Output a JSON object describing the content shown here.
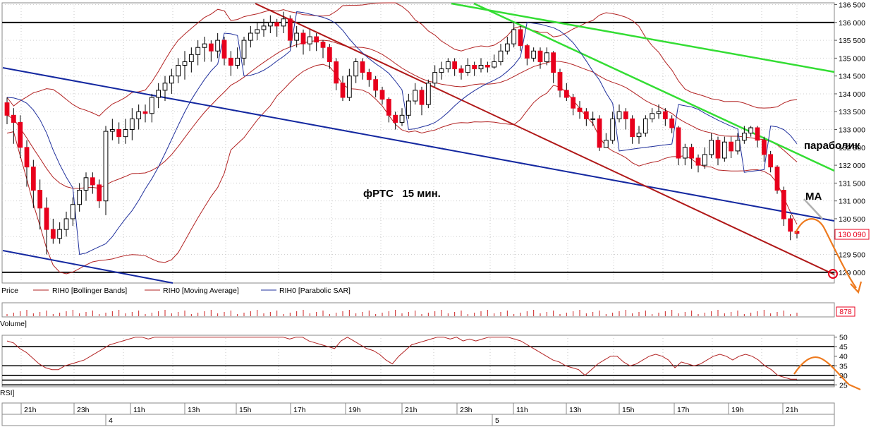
{
  "chart_data": [
    {
      "type": "candlestick",
      "title": "фРТС   15 мин.",
      "y_ticks": [
        "136 500",
        "136 000",
        "135 500",
        "135 000",
        "134 500",
        "134 000",
        "133 500",
        "133 000",
        "132 500",
        "132 000",
        "131 500",
        "131 000",
        "130 500",
        "130 000",
        "129 500",
        "129 000"
      ],
      "ylim": [
        128700,
        136550
      ],
      "last_price": 130090,
      "last_price_label": "130 090",
      "candles": [
        [
          133750,
          133400,
          133900,
          133150
        ],
        [
          133400,
          133200,
          133600,
          132600
        ],
        [
          133200,
          132500,
          133400,
          132200
        ],
        [
          132500,
          131950,
          132700,
          131400
        ],
        [
          131950,
          131300,
          132150,
          130800
        ],
        [
          131300,
          130800,
          131600,
          130200
        ],
        [
          130800,
          130200,
          131100,
          129500
        ],
        [
          130200,
          129950,
          130500,
          129800
        ],
        [
          129950,
          130200,
          130400,
          129800
        ],
        [
          130200,
          130500,
          130700,
          130000
        ],
        [
          130500,
          130900,
          131100,
          130300
        ],
        [
          130900,
          131300,
          131500,
          130700
        ],
        [
          131300,
          131650,
          131800,
          131000
        ],
        [
          131650,
          131450,
          131800,
          131200
        ],
        [
          131450,
          131000,
          131600,
          130800
        ],
        [
          131000,
          132950,
          133100,
          130600
        ],
        [
          132950,
          133000,
          133300,
          132700
        ],
        [
          133000,
          132800,
          133200,
          132600
        ],
        [
          132800,
          133000,
          133300,
          132600
        ],
        [
          133000,
          133300,
          133600,
          132700
        ],
        [
          133300,
          133500,
          133700,
          133000
        ],
        [
          133500,
          133450,
          133700,
          133200
        ],
        [
          133450,
          133900,
          134000,
          133200
        ],
        [
          133900,
          134100,
          134300,
          133600
        ],
        [
          134100,
          134300,
          134500,
          133800
        ],
        [
          134300,
          134500,
          134700,
          134000
        ],
        [
          134500,
          134800,
          135000,
          134300
        ],
        [
          134800,
          134900,
          135200,
          134400
        ],
        [
          134900,
          135100,
          135300,
          134600
        ],
        [
          135100,
          135300,
          135500,
          134800
        ],
        [
          135300,
          135400,
          135600,
          134900
        ],
        [
          135400,
          135200,
          135500,
          134900
        ],
        [
          135200,
          135500,
          135700,
          135000
        ],
        [
          135500,
          135000,
          135600,
          134800
        ],
        [
          135000,
          134800,
          135200,
          134500
        ],
        [
          134800,
          135000,
          135300,
          134700
        ],
        [
          135000,
          135500,
          135600,
          134800
        ],
        [
          135500,
          135700,
          135900,
          135300
        ],
        [
          135700,
          135800,
          136000,
          135500
        ],
        [
          135800,
          135900,
          136100,
          135600
        ],
        [
          135900,
          136000,
          136200,
          135700
        ],
        [
          136000,
          135900,
          136100,
          135600
        ],
        [
          135900,
          136100,
          136300,
          135700
        ],
        [
          136100,
          135500,
          136200,
          135300
        ],
        [
          135500,
          135700,
          135900,
          135300
        ],
        [
          135700,
          135400,
          135800,
          135100
        ],
        [
          135400,
          135600,
          135800,
          135200
        ],
        [
          135600,
          135450,
          135700,
          135200
        ],
        [
          135450,
          135300,
          135500,
          135000
        ],
        [
          135300,
          134900,
          135400,
          134700
        ],
        [
          134900,
          134300,
          135000,
          134100
        ],
        [
          134300,
          133900,
          134500,
          133800
        ],
        [
          133900,
          134500,
          134700,
          133800
        ],
        [
          134500,
          134900,
          135000,
          134300
        ],
        [
          134900,
          134600,
          135000,
          134400
        ],
        [
          134600,
          134400,
          134700,
          134200
        ],
        [
          134400,
          134100,
          134500,
          133900
        ],
        [
          134100,
          133850,
          134200,
          133700
        ],
        [
          133850,
          133400,
          133900,
          133200
        ],
        [
          133400,
          133200,
          133500,
          133000
        ],
        [
          133200,
          133400,
          133600,
          133100
        ],
        [
          133400,
          133800,
          134000,
          133300
        ],
        [
          133800,
          134100,
          134300,
          133700
        ],
        [
          134100,
          133700,
          134200,
          133400
        ],
        [
          133700,
          134300,
          134400,
          133600
        ],
        [
          134300,
          134600,
          134800,
          134200
        ],
        [
          134600,
          134700,
          134900,
          134400
        ],
        [
          134700,
          134900,
          135000,
          134600
        ],
        [
          134900,
          134700,
          135000,
          134500
        ],
        [
          134700,
          134600,
          134800,
          134400
        ],
        [
          134600,
          134800,
          135000,
          134500
        ],
        [
          134800,
          134700,
          134900,
          134500
        ],
        [
          134700,
          134800,
          135000,
          134600
        ],
        [
          134800,
          134750,
          134900,
          134600
        ],
        [
          134750,
          134900,
          135100,
          134700
        ],
        [
          134900,
          135200,
          135400,
          134800
        ],
        [
          135200,
          135400,
          135600,
          135100
        ],
        [
          135400,
          135800,
          136000,
          135300
        ],
        [
          135800,
          135350,
          135900,
          135200
        ],
        [
          135350,
          135000,
          135400,
          134800
        ],
        [
          135000,
          135200,
          135300,
          134900
        ],
        [
          135200,
          134900,
          135300,
          134700
        ],
        [
          134900,
          135150,
          135300,
          134800
        ],
        [
          135150,
          134600,
          135200,
          134300
        ],
        [
          134600,
          134100,
          134700,
          133900
        ],
        [
          134100,
          133900,
          134300,
          133800
        ],
        [
          133900,
          133600,
          134000,
          133400
        ],
        [
          133600,
          133500,
          133800,
          133300
        ],
        [
          133500,
          133300,
          133600,
          133100
        ],
        [
          133300,
          133300,
          133500,
          133100
        ],
        [
          133300,
          132500,
          133400,
          132400
        ],
        [
          132500,
          132700,
          132900,
          132500
        ],
        [
          132700,
          133300,
          133500,
          132600
        ],
        [
          133300,
          133500,
          133700,
          133200
        ],
        [
          133500,
          133300,
          133600,
          133000
        ],
        [
          133300,
          132800,
          133400,
          132600
        ],
        [
          132800,
          132900,
          133100,
          132600
        ],
        [
          132900,
          133300,
          133400,
          132800
        ],
        [
          133300,
          133450,
          133600,
          133200
        ],
        [
          133450,
          133500,
          133700,
          133300
        ],
        [
          133500,
          133300,
          133600,
          133100
        ],
        [
          133300,
          133050,
          133400,
          132900
        ],
        [
          133050,
          132200,
          133100,
          132000
        ],
        [
          132200,
          132500,
          132600,
          132000
        ],
        [
          132500,
          132200,
          132600,
          131900
        ],
        [
          132200,
          132000,
          132300,
          131800
        ],
        [
          132000,
          132300,
          132500,
          131900
        ],
        [
          132300,
          132700,
          132900,
          132200
        ],
        [
          132700,
          132200,
          132800,
          132000
        ],
        [
          132200,
          132650,
          132800,
          132100
        ],
        [
          132650,
          132400,
          132800,
          132200
        ],
        [
          132400,
          132700,
          132900,
          132300
        ],
        [
          132700,
          132900,
          133100,
          132600
        ],
        [
          132900,
          133050,
          133100,
          132800
        ],
        [
          133050,
          132700,
          133100,
          132500
        ],
        [
          132700,
          132300,
          132800,
          132100
        ],
        [
          132300,
          131950,
          132400,
          131800
        ],
        [
          131950,
          131300,
          132000,
          131200
        ],
        [
          131300,
          130500,
          131400,
          130300
        ],
        [
          130500,
          130150,
          130600,
          129900
        ],
        [
          130150,
          130090,
          130200,
          129950
        ]
      ],
      "panels": {
        "price": {
          "legend": [
            {
              "name": "Price",
              "color": "#000000"
            },
            {
              "name": "RIH0 [Bollinger Bands]",
              "color": "#b22222"
            },
            {
              "name": "RIH0 [Moving Average]",
              "color": "#b22222"
            },
            {
              "name": "RIH0 [Parabolic SAR]",
              "color": "#1f2f9c"
            }
          ],
          "horizontal_levels": [
            136000,
            129000
          ],
          "annotations": [
            {
              "text": "параболик"
            },
            {
              "text": "МА"
            }
          ]
        },
        "volume": {
          "label": "Volume]",
          "last_value_label": "878"
        },
        "rsi": {
          "label": "RSI]",
          "y_ticks": [
            "50",
            "45",
            "40",
            "35",
            "30",
            "25"
          ],
          "ylim": [
            24,
            51
          ],
          "levels": [
            45,
            35,
            30,
            27.5,
            25
          ],
          "values": [
            48,
            47,
            44,
            42,
            39,
            36,
            34,
            33,
            33,
            35,
            36,
            37,
            38,
            40,
            42,
            44,
            46,
            47,
            48,
            49,
            50,
            50,
            49,
            50,
            50,
            50,
            50,
            50,
            50,
            50,
            50,
            50,
            50,
            50,
            50,
            50,
            50,
            50,
            50,
            50,
            50,
            50,
            50,
            50,
            49,
            50,
            50,
            48,
            47,
            46,
            45,
            44,
            48,
            50,
            48,
            46,
            44,
            43,
            41,
            38,
            36,
            40,
            43,
            46,
            47,
            48,
            49,
            50,
            50,
            49,
            50,
            48,
            49,
            48,
            49,
            50,
            50,
            50,
            50,
            49,
            48,
            46,
            44,
            42,
            40,
            38,
            37,
            35,
            34,
            33,
            30,
            33,
            36,
            38,
            40,
            40,
            37,
            35,
            36,
            38,
            40,
            41,
            40,
            38,
            34,
            37,
            36,
            35,
            36,
            38,
            40,
            41,
            40,
            38,
            40,
            41,
            40,
            38,
            35,
            33,
            30,
            29,
            28,
            28
          ]
        },
        "time_axis": {
          "hour_labels": [
            "21h",
            "23h",
            "11h",
            "13h",
            "15h",
            "17h",
            "19h",
            "21h",
            "23h",
            "11h",
            "13h",
            "15h",
            "17h",
            "19h",
            "21h"
          ],
          "day_labels": [
            "4",
            "5"
          ]
        }
      },
      "colors": {
        "candle_down": "#e8001c",
        "candle_up": "#ffffff",
        "bollinger": "#b22222",
        "moving_average": "#b22222",
        "parabolic_sar": "#1f2f9c",
        "blue_trend": "#1428a0",
        "red_trend": "#b01818",
        "green_trend": "#33dd33",
        "forecast": "#ee7a1e",
        "level_line": "#000000"
      }
    }
  ]
}
